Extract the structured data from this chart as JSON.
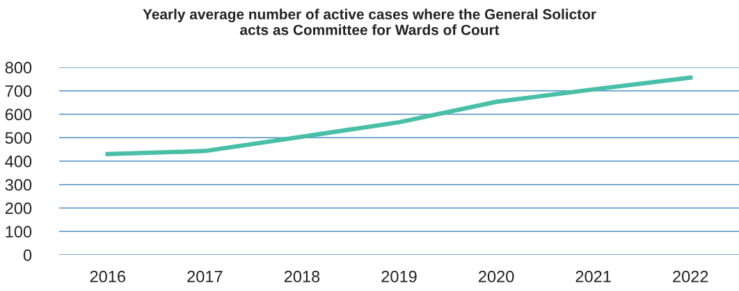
{
  "chart_data": {
    "type": "line",
    "title": "Yearly average number of active cases where the General Solictor\nacts as Committee for Wards of Court",
    "categories": [
      "2016",
      "2017",
      "2018",
      "2019",
      "2020",
      "2021",
      "2022"
    ],
    "series": [
      {
        "color": "#48bfa6",
        "values": [
          430,
          443,
          504,
          566,
          653,
          706,
          756
        ]
      }
    ],
    "ylim": [
      0,
      800
    ],
    "yticks": [
      0,
      100,
      200,
      300,
      400,
      500,
      600,
      700,
      800
    ],
    "grid": "y",
    "legend": false,
    "marker": "none",
    "line_style": "solid"
  }
}
